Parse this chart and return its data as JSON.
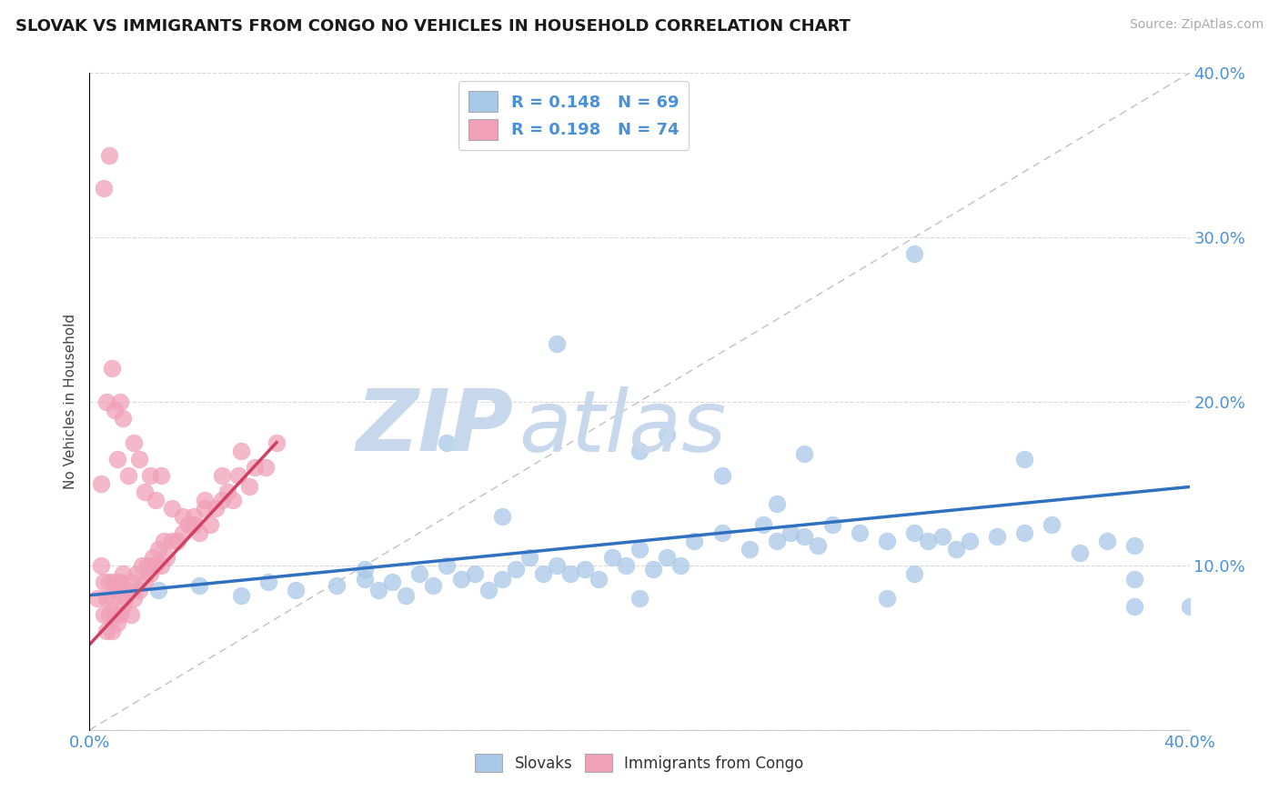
{
  "title": "SLOVAK VS IMMIGRANTS FROM CONGO NO VEHICLES IN HOUSEHOLD CORRELATION CHART",
  "source": "Source: ZipAtlas.com",
  "ylabel": "No Vehicles in Household",
  "r_slovak": 0.148,
  "n_slovak": 69,
  "r_congo": 0.198,
  "n_congo": 74,
  "slovak_color": "#a8c8e8",
  "congo_color": "#f0a0b8",
  "trend_slovak_color": "#3070c0",
  "trend_congo_color": "#d04060",
  "watermark_zip_color": "#c8d8ec",
  "watermark_atlas_color": "#c8d8ec",
  "xlim": [
    0.0,
    0.4
  ],
  "ylim": [
    0.0,
    0.4
  ],
  "xtick_vals": [
    0.0,
    0.05,
    0.1,
    0.15,
    0.2,
    0.25,
    0.3,
    0.35,
    0.4
  ],
  "ytick_vals": [
    0.0,
    0.1,
    0.2,
    0.3,
    0.4
  ],
  "tick_color": "#4a90d9",
  "grid_color": "#d8d8d8",
  "ref_line_color": "#c0c0c0",
  "trend_slovak_start_y": 0.082,
  "trend_slovak_end_y": 0.148,
  "trend_congo_start_x": 0.0,
  "trend_congo_start_y": 0.052,
  "trend_congo_end_x": 0.068,
  "trend_congo_end_y": 0.175,
  "slovak_x": [
    0.025,
    0.04,
    0.055,
    0.065,
    0.075,
    0.09,
    0.1,
    0.105,
    0.11,
    0.115,
    0.12,
    0.125,
    0.13,
    0.135,
    0.14,
    0.145,
    0.15,
    0.155,
    0.16,
    0.165,
    0.17,
    0.175,
    0.18,
    0.185,
    0.19,
    0.195,
    0.2,
    0.205,
    0.21,
    0.215,
    0.22,
    0.23,
    0.24,
    0.245,
    0.25,
    0.255,
    0.26,
    0.265,
    0.27,
    0.28,
    0.29,
    0.3,
    0.305,
    0.31,
    0.315,
    0.32,
    0.33,
    0.34,
    0.36,
    0.37,
    0.38,
    0.4,
    0.13,
    0.17,
    0.21,
    0.23,
    0.26,
    0.3,
    0.34,
    0.38,
    0.1,
    0.15,
    0.2,
    0.25,
    0.3,
    0.35,
    0.29,
    0.2,
    0.38
  ],
  "slovak_y": [
    0.085,
    0.088,
    0.082,
    0.09,
    0.085,
    0.088,
    0.092,
    0.085,
    0.09,
    0.082,
    0.095,
    0.088,
    0.1,
    0.092,
    0.095,
    0.085,
    0.092,
    0.098,
    0.105,
    0.095,
    0.1,
    0.095,
    0.098,
    0.092,
    0.105,
    0.1,
    0.11,
    0.098,
    0.105,
    0.1,
    0.115,
    0.12,
    0.11,
    0.125,
    0.115,
    0.12,
    0.118,
    0.112,
    0.125,
    0.12,
    0.115,
    0.12,
    0.115,
    0.118,
    0.11,
    0.115,
    0.118,
    0.12,
    0.108,
    0.115,
    0.112,
    0.075,
    0.175,
    0.235,
    0.18,
    0.155,
    0.168,
    0.29,
    0.165,
    0.075,
    0.098,
    0.13,
    0.17,
    0.138,
    0.095,
    0.125,
    0.08,
    0.08,
    0.092
  ],
  "congo_x": [
    0.003,
    0.004,
    0.005,
    0.005,
    0.006,
    0.006,
    0.007,
    0.007,
    0.008,
    0.008,
    0.009,
    0.009,
    0.01,
    0.01,
    0.011,
    0.011,
    0.012,
    0.012,
    0.013,
    0.014,
    0.015,
    0.015,
    0.016,
    0.017,
    0.018,
    0.019,
    0.02,
    0.021,
    0.022,
    0.023,
    0.024,
    0.025,
    0.026,
    0.027,
    0.028,
    0.03,
    0.032,
    0.034,
    0.036,
    0.038,
    0.04,
    0.042,
    0.044,
    0.046,
    0.048,
    0.05,
    0.052,
    0.054,
    0.058,
    0.06,
    0.064,
    0.068,
    0.004,
    0.006,
    0.008,
    0.01,
    0.012,
    0.014,
    0.016,
    0.018,
    0.02,
    0.022,
    0.024,
    0.026,
    0.03,
    0.034,
    0.038,
    0.042,
    0.048,
    0.055,
    0.005,
    0.007,
    0.009,
    0.011
  ],
  "congo_y": [
    0.08,
    0.1,
    0.07,
    0.09,
    0.06,
    0.08,
    0.07,
    0.09,
    0.06,
    0.08,
    0.07,
    0.09,
    0.065,
    0.085,
    0.07,
    0.09,
    0.075,
    0.095,
    0.08,
    0.085,
    0.07,
    0.09,
    0.08,
    0.095,
    0.085,
    0.1,
    0.09,
    0.1,
    0.095,
    0.105,
    0.1,
    0.11,
    0.1,
    0.115,
    0.105,
    0.115,
    0.115,
    0.12,
    0.125,
    0.13,
    0.12,
    0.135,
    0.125,
    0.135,
    0.14,
    0.145,
    0.14,
    0.155,
    0.148,
    0.16,
    0.16,
    0.175,
    0.15,
    0.2,
    0.22,
    0.165,
    0.19,
    0.155,
    0.175,
    0.165,
    0.145,
    0.155,
    0.14,
    0.155,
    0.135,
    0.13,
    0.125,
    0.14,
    0.155,
    0.17,
    0.33,
    0.35,
    0.195,
    0.2
  ]
}
